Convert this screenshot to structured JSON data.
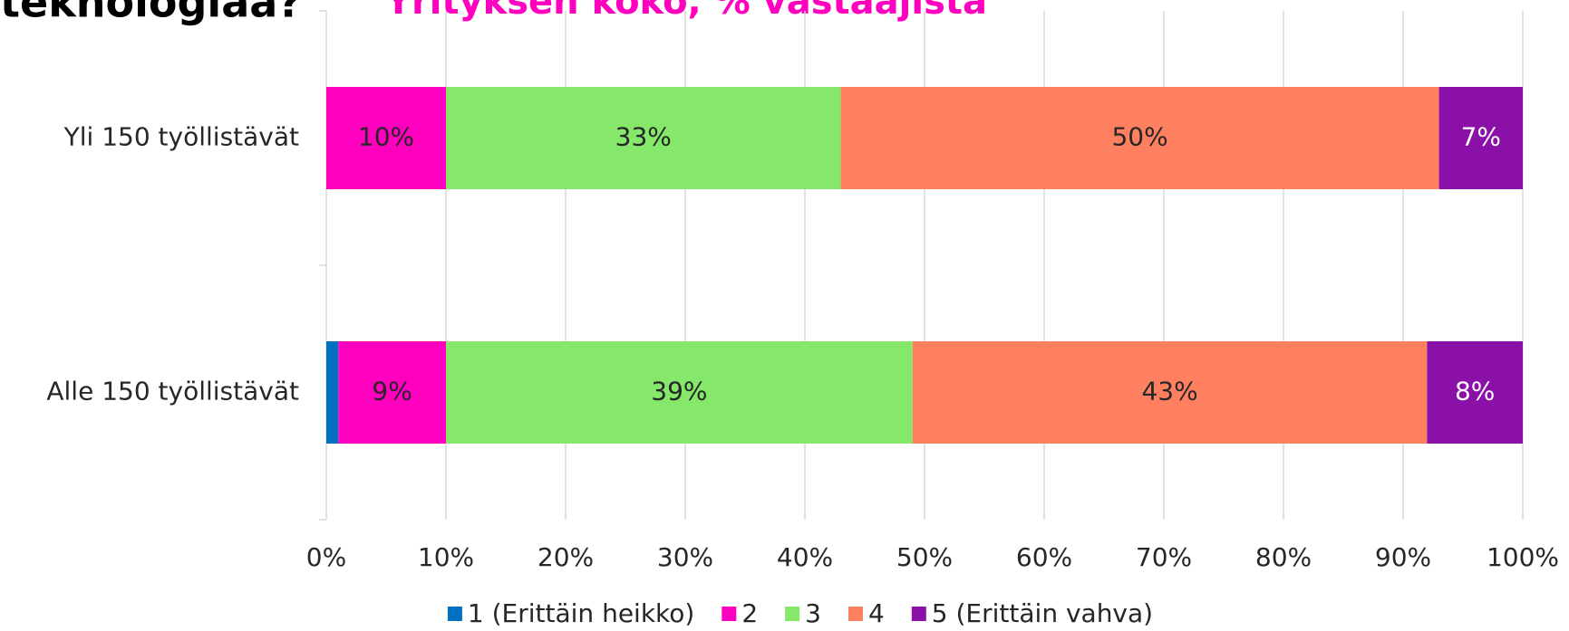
{
  "chart_data": {
    "type": "stacked_bar_horizontal",
    "title": "teknologiaa?",
    "subtitle": "Yrityksen koko, % vastaajista",
    "categories": [
      "Yli 150 työllistävät",
      "Alle 150 työllistävät"
    ],
    "series": [
      {
        "name": "1 (Erittäin heikko)",
        "color": "#0070c0",
        "values": [
          0,
          1
        ]
      },
      {
        "name": "2",
        "color": "#ff00bf",
        "values": [
          10,
          9
        ],
        "value_labels": [
          "10%",
          "9%"
        ]
      },
      {
        "name": "3",
        "color": "#86e86b",
        "values": [
          33,
          39
        ],
        "value_labels": [
          "33%",
          "39%"
        ]
      },
      {
        "name": "4",
        "color": "#ff8060",
        "values": [
          50,
          43
        ],
        "value_labels": [
          "50%",
          "43%"
        ]
      },
      {
        "name": "5 (Erittäin vahva)",
        "color": "#8b10a8",
        "values": [
          7,
          8
        ],
        "value_labels": [
          "7%",
          "8%"
        ]
      }
    ],
    "xlim": [
      0,
      100
    ],
    "xticks": [
      {
        "value": 0,
        "label": "0%"
      },
      {
        "value": 10,
        "label": "10%"
      },
      {
        "value": 20,
        "label": "20%"
      },
      {
        "value": 30,
        "label": "30%"
      },
      {
        "value": 40,
        "label": "40%"
      },
      {
        "value": 50,
        "label": "50%"
      },
      {
        "value": 60,
        "label": "60%"
      },
      {
        "value": 70,
        "label": "70%"
      },
      {
        "value": 80,
        "label": "80%"
      },
      {
        "value": 90,
        "label": "90%"
      },
      {
        "value": 100,
        "label": "100%"
      }
    ],
    "grid": true,
    "legend": "bottom"
  }
}
